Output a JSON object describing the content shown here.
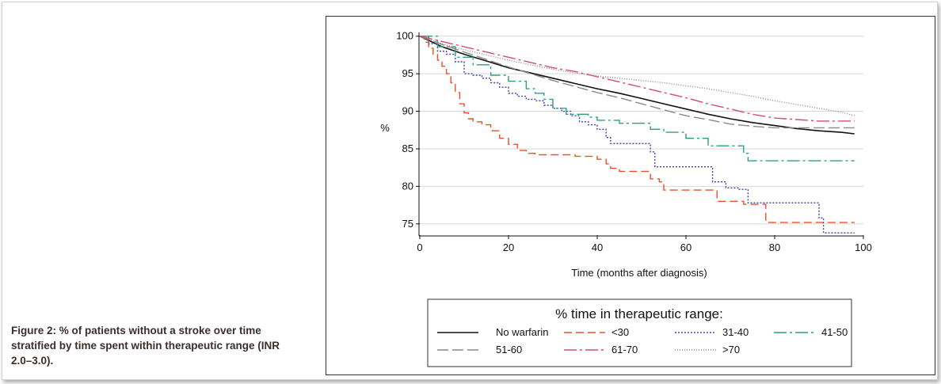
{
  "caption": "Figure 2: % of patients without a stroke over time stratified by time spent within therapeutic range (INR 2.0–3.0).",
  "chart_data": {
    "type": "line",
    "title": "",
    "xlabel": "Time (months after diagnosis)",
    "ylabel": "%",
    "xlim": [
      0,
      100
    ],
    "ylim": [
      73.5,
      100.5
    ],
    "xticks": [
      0,
      20,
      40,
      60,
      80,
      100
    ],
    "yticks": [
      75,
      80,
      85,
      90,
      95,
      100
    ],
    "grid": true,
    "legend_title": "% time in therapeutic range:",
    "legend_position": "bottom",
    "series": [
      {
        "name": "No warfarin",
        "color": "#111111",
        "dash": "solid",
        "step": false,
        "points": [
          [
            0,
            100
          ],
          [
            5,
            98.6
          ],
          [
            10,
            97.6
          ],
          [
            15,
            96.7
          ],
          [
            20,
            95.8
          ],
          [
            25,
            95.1
          ],
          [
            30,
            94.4
          ],
          [
            35,
            93.7
          ],
          [
            40,
            93.0
          ],
          [
            45,
            92.4
          ],
          [
            50,
            91.7
          ],
          [
            55,
            91.0
          ],
          [
            60,
            90.3
          ],
          [
            65,
            89.6
          ],
          [
            70,
            89.0
          ],
          [
            75,
            88.5
          ],
          [
            80,
            88.1
          ],
          [
            85,
            87.7
          ],
          [
            90,
            87.4
          ],
          [
            95,
            87.2
          ],
          [
            98,
            87.0
          ]
        ]
      },
      {
        "name": "<30",
        "color": "#e8522a",
        "dash": "10,5",
        "step": true,
        "points": [
          [
            0,
            100
          ],
          [
            1,
            99.2
          ],
          [
            2,
            98.4
          ],
          [
            3,
            97.6
          ],
          [
            4,
            96.8
          ],
          [
            5,
            96.0
          ],
          [
            6,
            95.0
          ],
          [
            7,
            93.8
          ],
          [
            8,
            92.5
          ],
          [
            9,
            91.0
          ],
          [
            10,
            89.8
          ],
          [
            11,
            89.0
          ],
          [
            12,
            88.6
          ],
          [
            14,
            88.2
          ],
          [
            16,
            87.4
          ],
          [
            18,
            86.4
          ],
          [
            20,
            85.6
          ],
          [
            22,
            84.8
          ],
          [
            24,
            84.4
          ],
          [
            26,
            84.2
          ],
          [
            35,
            84.0
          ],
          [
            40,
            83.6
          ],
          [
            42,
            83.0
          ],
          [
            43,
            82.4
          ],
          [
            45,
            82.0
          ],
          [
            52,
            81.0
          ],
          [
            54,
            80.6
          ],
          [
            55,
            79.5
          ],
          [
            67,
            78.0
          ],
          [
            73,
            77.6
          ],
          [
            78,
            75.2
          ],
          [
            98,
            75.2
          ]
        ]
      },
      {
        "name": "31-40",
        "color": "#3f3fb0",
        "dash": "2,2",
        "step": true,
        "points": [
          [
            0,
            100
          ],
          [
            2,
            99
          ],
          [
            4,
            98
          ],
          [
            6,
            97.6
          ],
          [
            8,
            96.6
          ],
          [
            10,
            95
          ],
          [
            12,
            94.8
          ],
          [
            14,
            94.4
          ],
          [
            16,
            93.8
          ],
          [
            18,
            93.2
          ],
          [
            20,
            92.4
          ],
          [
            22,
            92
          ],
          [
            24,
            91.6
          ],
          [
            26,
            91.4
          ],
          [
            28,
            90.8
          ],
          [
            30,
            90.4
          ],
          [
            32,
            90
          ],
          [
            34,
            89.4
          ],
          [
            36,
            88.6
          ],
          [
            38,
            88.2
          ],
          [
            40,
            87.6
          ],
          [
            42,
            86.5
          ],
          [
            43,
            85.7
          ],
          [
            50,
            85.7
          ],
          [
            52,
            84.6
          ],
          [
            53,
            82.6
          ],
          [
            65,
            82.6
          ],
          [
            66,
            80.6
          ],
          [
            67,
            80.6
          ],
          [
            69,
            79.8
          ],
          [
            72,
            79.6
          ],
          [
            74,
            77.8
          ],
          [
            78,
            77.8
          ],
          [
            90,
            75.8
          ],
          [
            91,
            73.8
          ],
          [
            98,
            73.8
          ]
        ]
      },
      {
        "name": "41-50",
        "color": "#2aa080",
        "dash": "16,4,3,4",
        "step": true,
        "points": [
          [
            0,
            100
          ],
          [
            4,
            98.6
          ],
          [
            8,
            97.2
          ],
          [
            12,
            96.2
          ],
          [
            16,
            94.8
          ],
          [
            20,
            94.0
          ],
          [
            24,
            93.0
          ],
          [
            26,
            92.4
          ],
          [
            28,
            91.6
          ],
          [
            30,
            90.4
          ],
          [
            33,
            89.6
          ],
          [
            38,
            89.2
          ],
          [
            40,
            88.8
          ],
          [
            45,
            88.4
          ],
          [
            52,
            87.6
          ],
          [
            55,
            87.2
          ],
          [
            60,
            86.4
          ],
          [
            65,
            85.4
          ],
          [
            68,
            85.4
          ],
          [
            73,
            84.4
          ],
          [
            74,
            83.4
          ],
          [
            98,
            83.4
          ]
        ]
      },
      {
        "name": "51-60",
        "color": "#8a8a8a",
        "dash": "14,5",
        "step": false,
        "points": [
          [
            0,
            100
          ],
          [
            5,
            98.9
          ],
          [
            10,
            97.9
          ],
          [
            15,
            96.9
          ],
          [
            20,
            95.9
          ],
          [
            25,
            95.0
          ],
          [
            30,
            94.1
          ],
          [
            35,
            93.3
          ],
          [
            40,
            92.5
          ],
          [
            45,
            91.8
          ],
          [
            50,
            91.0
          ],
          [
            55,
            90.2
          ],
          [
            60,
            89.4
          ],
          [
            65,
            88.9
          ],
          [
            70,
            88.3
          ],
          [
            75,
            88.0
          ],
          [
            80,
            87.8
          ],
          [
            85,
            87.8
          ],
          [
            90,
            87.8
          ],
          [
            95,
            87.8
          ],
          [
            98,
            87.8
          ]
        ]
      },
      {
        "name": "61-70",
        "color": "#d84a6f",
        "dash": "16,4,3,4",
        "step": false,
        "points": [
          [
            0,
            100
          ],
          [
            5,
            99.3
          ],
          [
            10,
            98.6
          ],
          [
            15,
            97.9
          ],
          [
            20,
            97.2
          ],
          [
            25,
            96.5
          ],
          [
            30,
            95.8
          ],
          [
            35,
            95.3
          ],
          [
            40,
            94.6
          ],
          [
            45,
            93.9
          ],
          [
            50,
            93.2
          ],
          [
            55,
            92.5
          ],
          [
            60,
            91.8
          ],
          [
            65,
            91.0
          ],
          [
            70,
            90.3
          ],
          [
            75,
            89.6
          ],
          [
            80,
            89.1
          ],
          [
            85,
            88.9
          ],
          [
            90,
            88.7
          ],
          [
            95,
            88.7
          ],
          [
            98,
            88.7
          ]
        ]
      },
      {
        "name": ">70",
        "color": "#8a8a8a",
        "dash": "1,2",
        "step": false,
        "points": [
          [
            0,
            100
          ],
          [
            5,
            99.0
          ],
          [
            10,
            98.2
          ],
          [
            15,
            97.5
          ],
          [
            20,
            96.8
          ],
          [
            25,
            96.2
          ],
          [
            30,
            95.6
          ],
          [
            35,
            95.1
          ],
          [
            40,
            94.7
          ],
          [
            45,
            94.4
          ],
          [
            50,
            94.1
          ],
          [
            55,
            93.8
          ],
          [
            60,
            93.4
          ],
          [
            65,
            93.0
          ],
          [
            70,
            92.5
          ],
          [
            75,
            92.0
          ],
          [
            80,
            91.4
          ],
          [
            85,
            90.9
          ],
          [
            90,
            90.4
          ],
          [
            95,
            89.9
          ],
          [
            98,
            89.4
          ]
        ]
      }
    ]
  }
}
